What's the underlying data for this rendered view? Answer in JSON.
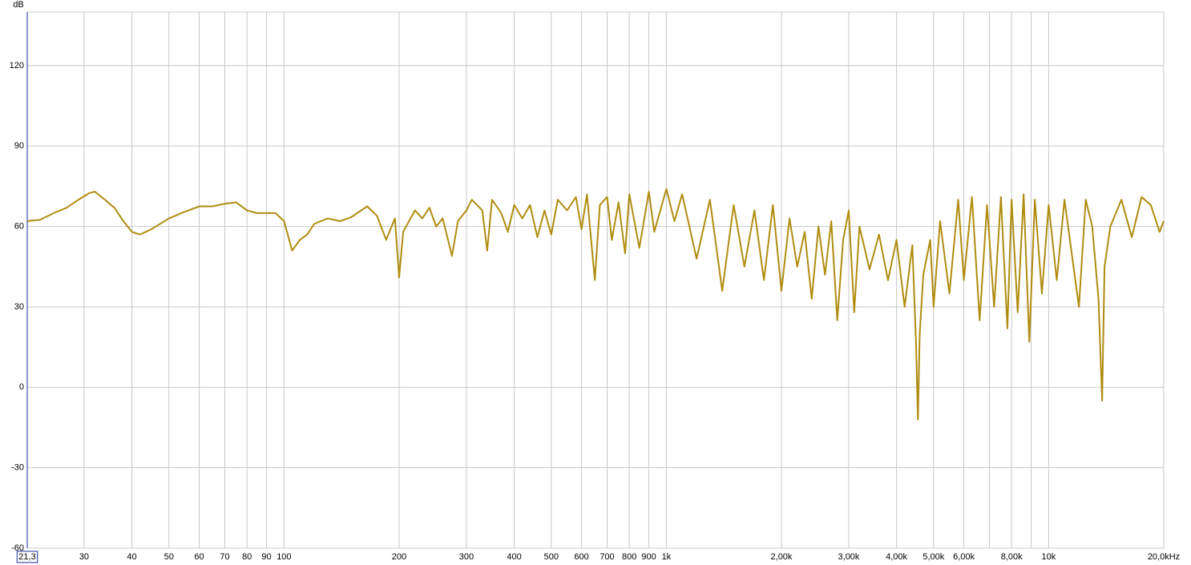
{
  "chart_data": {
    "type": "line",
    "y_label": "dB",
    "color": "#b08c10",
    "log_x": true,
    "grid": true,
    "xlim": [
      21.3,
      20000
    ],
    "ylim": [
      -60,
      140
    ],
    "xticks": [
      {
        "value": 21.3,
        "label": "21,3"
      },
      30,
      40,
      50,
      60,
      70,
      80,
      90,
      100,
      200,
      300,
      400,
      500,
      600,
      700,
      800,
      900,
      {
        "value": 1000,
        "label": "1k"
      },
      {
        "value": 2000,
        "label": "2,00k"
      },
      {
        "value": 3000,
        "label": "3,00k"
      },
      {
        "value": 4000,
        "label": "4,00k"
      },
      {
        "value": 5000,
        "label": "5,00k"
      },
      {
        "value": 6000,
        "label": "6,00k"
      },
      {
        "value": 7000,
        "label": null
      },
      {
        "value": 8000,
        "label": "8,00k"
      },
      {
        "value": 9000,
        "label": null
      },
      {
        "value": 10000,
        "label": "10k"
      },
      {
        "value": 20000,
        "label": "20,0kHz"
      }
    ],
    "yticks": [
      -60,
      -30,
      0,
      30,
      60,
      90,
      120
    ],
    "x": [
      21.3,
      23,
      25,
      27,
      29,
      31,
      32,
      34,
      36,
      38,
      40,
      42,
      45,
      50,
      55,
      60,
      65,
      70,
      75,
      80,
      85,
      90,
      95,
      100,
      105,
      110,
      115,
      120,
      130,
      140,
      150,
      165,
      175,
      185,
      195,
      200,
      205,
      220,
      230,
      240,
      250,
      260,
      275,
      285,
      300,
      310,
      330,
      340,
      350,
      370,
      385,
      400,
      420,
      440,
      460,
      480,
      500,
      520,
      550,
      580,
      600,
      620,
      650,
      670,
      700,
      720,
      750,
      780,
      800,
      850,
      900,
      930,
      1000,
      1050,
      1100,
      1200,
      1300,
      1400,
      1500,
      1600,
      1700,
      1800,
      1900,
      2000,
      2100,
      2200,
      2300,
      2400,
      2500,
      2600,
      2700,
      2800,
      2900,
      3000,
      3100,
      3200,
      3400,
      3600,
      3800,
      4000,
      4200,
      4400,
      4500,
      4550,
      4600,
      4700,
      4900,
      5000,
      5200,
      5500,
      5800,
      6000,
      6300,
      6600,
      6900,
      7200,
      7500,
      7800,
      8000,
      8300,
      8600,
      8900,
      9200,
      9600,
      10000,
      10500,
      11000,
      12000,
      12500,
      13000,
      13500,
      13800,
      14000,
      14500,
      15500,
      16500,
      17500,
      18500,
      19500,
      20000
    ],
    "values": [
      62,
      62.5,
      65,
      67,
      70,
      72.5,
      73,
      70,
      67,
      62,
      58,
      57,
      59,
      63,
      65.5,
      67.5,
      67.5,
      68.5,
      69,
      66,
      65,
      65,
      65,
      62,
      51,
      55,
      57,
      61,
      63,
      62,
      63.5,
      67.5,
      64,
      55,
      63,
      41,
      58,
      66,
      63,
      67,
      60,
      63,
      49,
      62,
      66,
      70,
      66,
      51,
      70,
      65,
      58,
      68,
      63,
      68,
      56,
      66,
      57,
      70,
      66,
      71,
      59,
      72,
      40,
      68,
      71,
      55,
      69,
      50,
      72,
      52,
      73,
      58,
      74,
      62,
      72,
      48,
      70,
      36,
      68,
      45,
      66,
      40,
      68,
      36,
      63,
      45,
      58,
      33,
      60,
      42,
      62,
      25,
      55,
      66,
      28,
      60,
      44,
      57,
      40,
      55,
      30,
      53,
      16,
      -12,
      20,
      42,
      55,
      30,
      62,
      35,
      70,
      40,
      71,
      25,
      68,
      30,
      71,
      22,
      70,
      28,
      72,
      17,
      70,
      35,
      68,
      40,
      70,
      30,
      70,
      60,
      33,
      -5,
      45,
      60,
      70,
      56,
      71,
      68,
      58,
      62
    ]
  }
}
